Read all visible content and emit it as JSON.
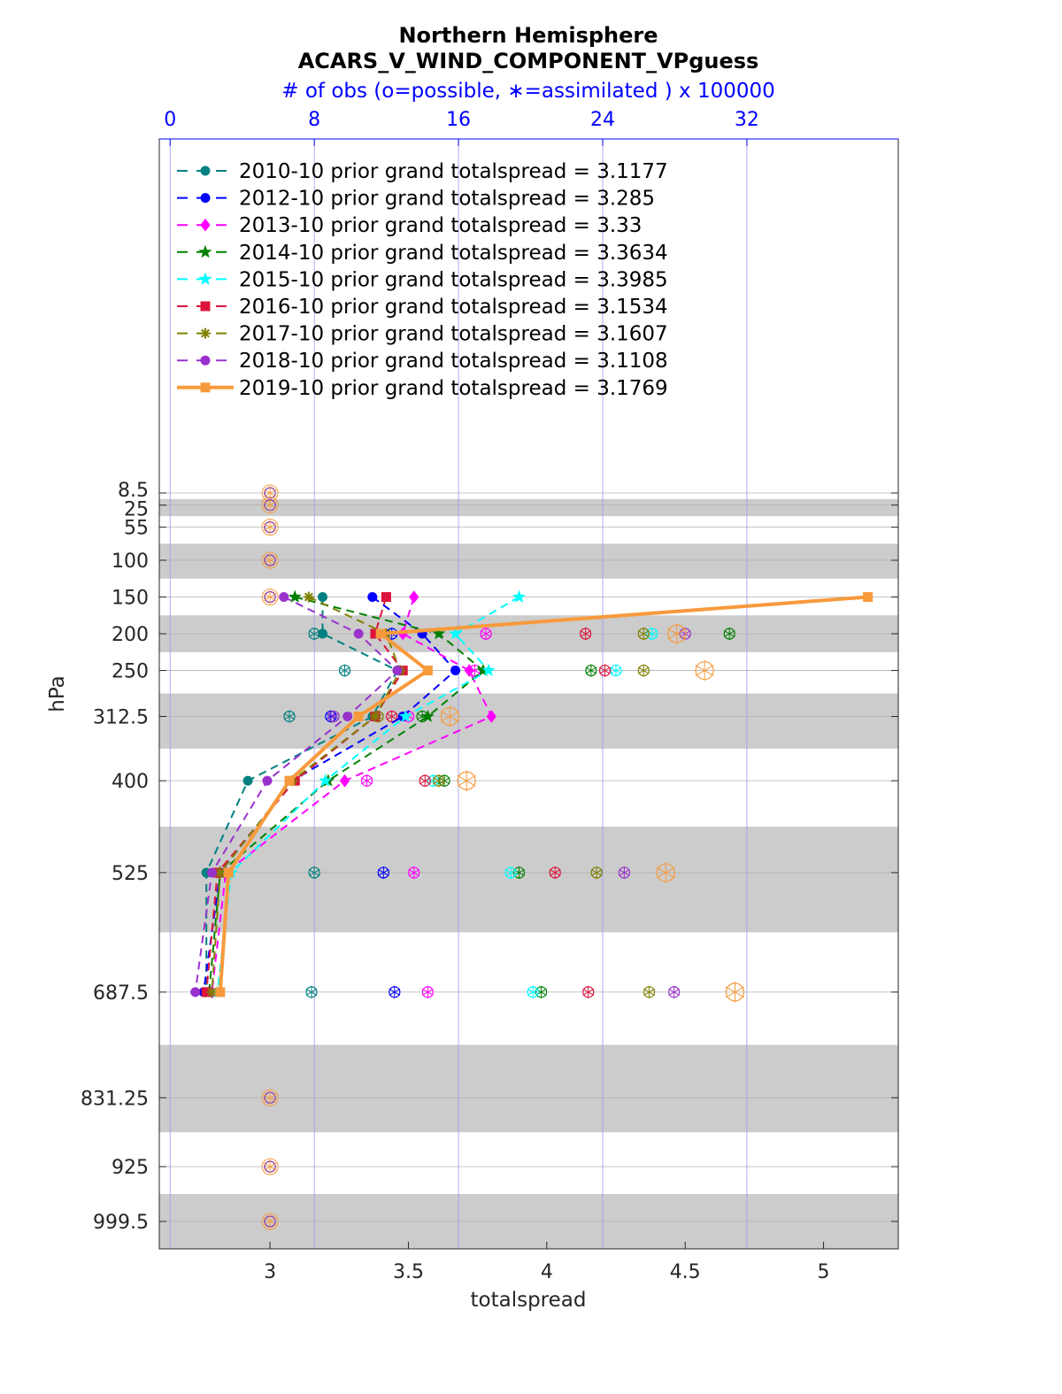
{
  "chart_data": {
    "type": "line",
    "title": "Northern Hemisphere",
    "subtitle": "ACARS_V_WIND_COMPONENT_VPguess",
    "top_axis_label": "# of obs (o=possible, ∗=assimilated ) x 100000",
    "xlabel": "totalspread",
    "ylabel": "hPa",
    "xlim": [
      2.6,
      5.27
    ],
    "x_ticks": [
      3,
      3.5,
      4,
      4.5,
      5
    ],
    "x_tick_labels": [
      "3",
      "3.5",
      "4",
      "4.5",
      "5"
    ],
    "top_xlim": [
      -0.6,
      40.4
    ],
    "top_ticks": [
      0,
      8,
      16,
      24,
      32
    ],
    "top_tick_labels": [
      "0",
      "8",
      "16",
      "24",
      "32"
    ],
    "levels": [
      8.5,
      25,
      55,
      100,
      150,
      200,
      250,
      312.5,
      400,
      525,
      687.5,
      831.25,
      925,
      999.5
    ],
    "level_labels": [
      "8.5",
      "25",
      "55",
      "100",
      "150",
      "200",
      "250",
      "312.5",
      "400",
      "525",
      "687.5",
      "831.25",
      "925",
      "999.5"
    ],
    "grid": true,
    "legend_location": "top-left",
    "series": [
      {
        "name": "2010-10 prior grand totalspread = 3.1177",
        "color": "#008080",
        "style": "dashed",
        "marker": "circle",
        "levels": [
          150,
          200,
          250,
          312.5,
          400,
          525,
          687.5
        ],
        "values": [
          3.19,
          3.19,
          3.46,
          3.37,
          2.92,
          2.77,
          2.77
        ],
        "obs_levels": [
          200,
          250,
          312.5,
          525,
          687.5
        ],
        "obs_possible": [
          3.16,
          3.27,
          3.07,
          3.16,
          3.15
        ],
        "obs_assimilated": [
          3.16,
          3.27,
          3.07,
          3.16,
          3.15
        ]
      },
      {
        "name": "2012-10 prior grand totalspread = 3.285",
        "color": "#0000ff",
        "style": "dashed",
        "marker": "circle",
        "levels": [
          150,
          200,
          250,
          312.5,
          400,
          525,
          687.5
        ],
        "values": [
          3.37,
          3.55,
          3.67,
          3.48,
          3.08,
          2.82,
          2.76
        ],
        "obs_levels": [
          200,
          312.5,
          525,
          687.5
        ],
        "obs_possible": [
          3.44,
          3.22,
          3.41,
          3.45
        ],
        "obs_assimilated": [
          3.44,
          3.22,
          3.41,
          3.45
        ]
      },
      {
        "name": "2013-10 prior grand totalspread = 3.33",
        "color": "#ff00ff",
        "style": "dashed",
        "marker": "diamond",
        "levels": [
          150,
          200,
          250,
          312.5,
          400,
          525,
          687.5
        ],
        "values": [
          3.52,
          3.48,
          3.72,
          3.8,
          3.27,
          2.84,
          2.79
        ],
        "obs_levels": [
          200,
          250,
          312.5,
          400,
          525,
          687.5
        ],
        "obs_possible": [
          3.78,
          3.74,
          3.5,
          3.35,
          3.52,
          3.57
        ],
        "obs_assimilated": [
          3.78,
          3.74,
          3.5,
          3.35,
          3.52,
          3.57
        ]
      },
      {
        "name": "2014-10 prior grand totalspread = 3.3634",
        "color": "#008000",
        "style": "dashed",
        "marker": "star",
        "levels": [
          150,
          200,
          250,
          312.5,
          400,
          525,
          687.5
        ],
        "values": [
          3.09,
          3.61,
          3.77,
          3.57,
          3.21,
          2.82,
          2.78
        ],
        "obs_levels": [
          200,
          250,
          312.5,
          400,
          525,
          687.5
        ],
        "obs_possible": [
          4.66,
          4.16,
          3.55,
          3.63,
          3.9,
          3.98
        ],
        "obs_assimilated": [
          4.66,
          4.16,
          3.55,
          3.63,
          3.9,
          3.98
        ]
      },
      {
        "name": "2015-10 prior grand totalspread = 3.3985",
        "color": "#00ffff",
        "style": "dashed",
        "marker": "star",
        "levels": [
          150,
          200,
          250,
          312.5,
          400,
          525,
          687.5
        ],
        "values": [
          3.9,
          3.67,
          3.79,
          3.49,
          3.2,
          2.86,
          2.81
        ],
        "obs_levels": [
          200,
          250,
          400,
          525,
          687.5
        ],
        "obs_possible": [
          4.38,
          4.25,
          3.59,
          3.87,
          3.95
        ],
        "obs_assimilated": [
          4.38,
          4.25,
          3.59,
          3.87,
          3.95
        ]
      },
      {
        "name": "2016-10 prior grand totalspread = 3.1534",
        "color": "#dc143c",
        "style": "dashed",
        "marker": "square",
        "levels": [
          150,
          200,
          250,
          312.5,
          400,
          525,
          687.5
        ],
        "values": [
          3.42,
          3.38,
          3.48,
          3.38,
          3.09,
          2.81,
          2.77
        ],
        "obs_levels": [
          200,
          250,
          312.5,
          400,
          525,
          687.5
        ],
        "obs_possible": [
          4.14,
          4.21,
          3.44,
          3.56,
          4.03,
          4.15
        ],
        "obs_assimilated": [
          4.14,
          4.21,
          3.44,
          3.56,
          4.03,
          4.15
        ]
      },
      {
        "name": "2017-10 prior grand totalspread = 3.1607",
        "color": "#808000",
        "style": "dashed",
        "marker": "asterisk",
        "levels": [
          150,
          200,
          250,
          312.5,
          400,
          525,
          687.5
        ],
        "values": [
          3.14,
          3.42,
          3.47,
          3.38,
          3.08,
          2.82,
          2.79
        ],
        "obs_levels": [
          200,
          250,
          312.5,
          400,
          525,
          687.5
        ],
        "obs_possible": [
          4.35,
          4.35,
          3.39,
          3.61,
          4.18,
          4.37
        ],
        "obs_assimilated": [
          4.35,
          4.35,
          3.39,
          3.61,
          4.18,
          4.37
        ]
      },
      {
        "name": "2018-10 prior grand totalspread = 3.1108",
        "color": "#9932cc",
        "style": "dashed",
        "marker": "circle",
        "levels": [
          150,
          200,
          250,
          312.5,
          400,
          525,
          687.5
        ],
        "values": [
          3.05,
          3.32,
          3.46,
          3.28,
          2.99,
          2.79,
          2.73
        ],
        "obs_levels": [
          200,
          312.5,
          525,
          687.5
        ],
        "obs_possible": [
          4.5,
          3.23,
          4.28,
          4.46
        ],
        "obs_assimilated": [
          4.5,
          3.23,
          4.28,
          4.46
        ]
      },
      {
        "name": "2019-10 prior grand totalspread = 3.1769",
        "color": "#f79a3c",
        "style": "solid",
        "marker": "square",
        "levels": [
          150,
          200,
          250,
          312.5,
          400,
          525,
          687.5
        ],
        "values": [
          5.16,
          3.4,
          3.57,
          3.32,
          3.07,
          2.85,
          2.82
        ],
        "obs_levels": [
          200,
          250,
          312.5,
          400,
          525,
          687.5
        ],
        "obs_possible": [
          4.47,
          4.57,
          3.65,
          3.71,
          4.43,
          4.68
        ],
        "obs_assimilated": [
          4.47,
          4.57,
          3.65,
          3.71,
          4.43,
          4.68
        ]
      }
    ],
    "zero_obs_levels": [
      8.5,
      25,
      55,
      100,
      150,
      831.25,
      925,
      999.5
    ]
  }
}
